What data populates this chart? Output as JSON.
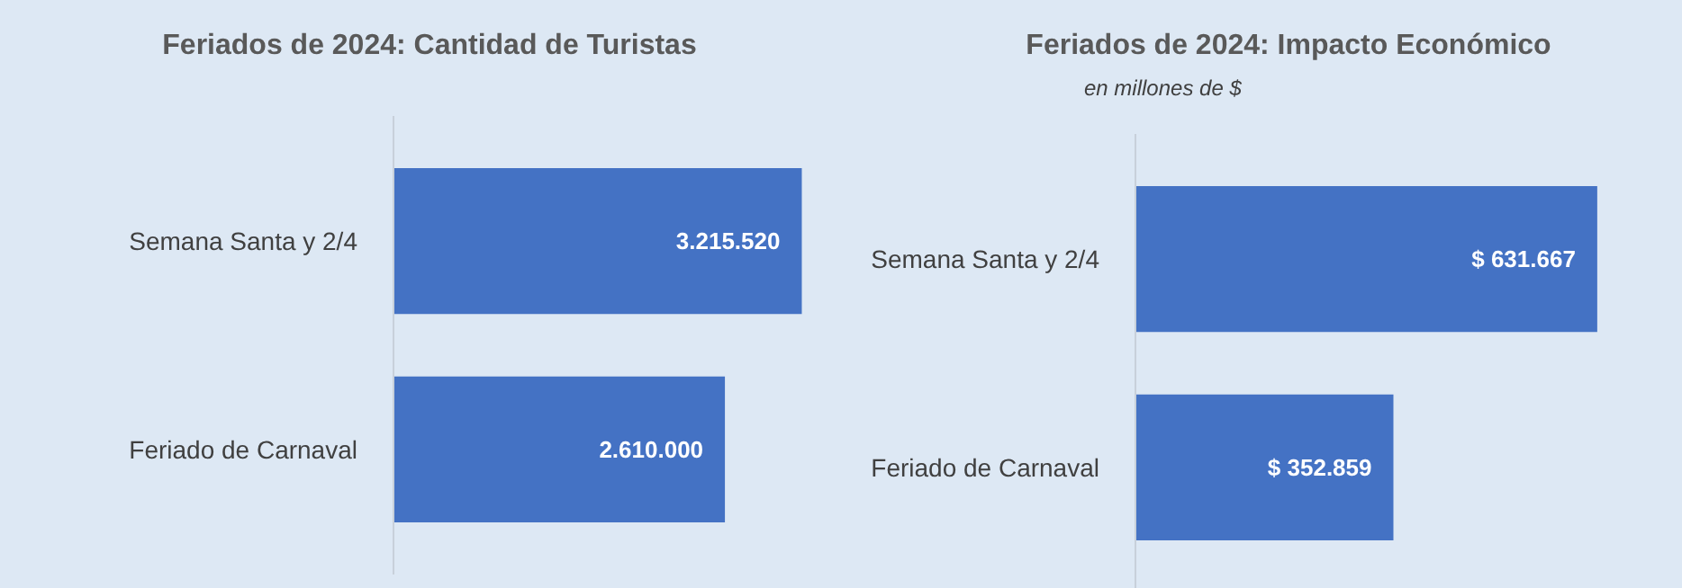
{
  "chart_data": [
    {
      "type": "bar",
      "orientation": "horizontal",
      "title": "Feriados de 2024: Cantidad de Turistas",
      "categories": [
        "Semana Santa y 2/4",
        "Feriado de Carnaval"
      ],
      "values": [
        3215520,
        2610000
      ],
      "value_labels": [
        "3.215.520",
        "2.610.000"
      ],
      "color": "#4472c4",
      "grid": false
    },
    {
      "type": "bar",
      "orientation": "horizontal",
      "title": "Feriados de 2024: Impacto Económico",
      "subtitle": "en millones de $",
      "categories": [
        "Semana Santa y 2/4",
        "Feriado de Carnaval"
      ],
      "values": [
        631667,
        352859
      ],
      "value_labels": [
        "$ 631.667",
        "$ 352.859"
      ],
      "color": "#4472c4",
      "grid": false
    }
  ]
}
